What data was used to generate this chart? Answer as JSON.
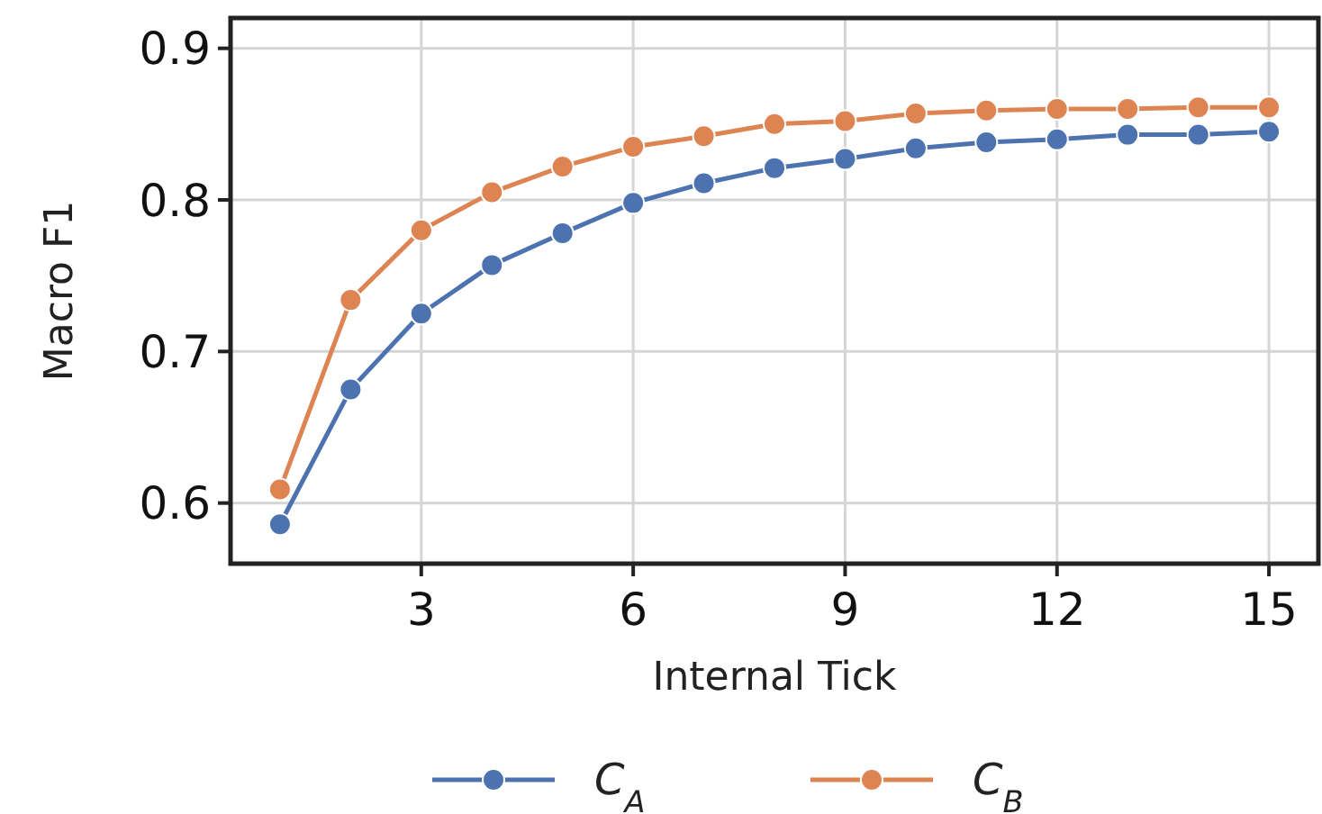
{
  "chart_data": {
    "type": "line",
    "xlabel": "Internal Tick",
    "ylabel": "Macro F1",
    "x": [
      1,
      2,
      3,
      4,
      5,
      6,
      7,
      8,
      9,
      10,
      11,
      12,
      13,
      14,
      15
    ],
    "xlim": [
      0.3,
      15.7
    ],
    "xticks": [
      3,
      6,
      9,
      12,
      15
    ],
    "ylim": [
      0.56,
      0.92
    ],
    "yticks": [
      0.6,
      0.7,
      0.8,
      0.9
    ],
    "grid": true,
    "legend": "bottom",
    "marker": "circle",
    "line_style": "solid",
    "series": [
      {
        "name": "C$_{A}$",
        "color": "#4c72b0",
        "values": [
          0.586,
          0.675,
          0.725,
          0.757,
          0.778,
          0.798,
          0.811,
          0.821,
          0.827,
          0.834,
          0.838,
          0.84,
          0.843,
          0.843,
          0.845
        ]
      },
      {
        "name": "C$_{B}$",
        "color": "#dd8452",
        "values": [
          0.609,
          0.734,
          0.78,
          0.805,
          0.822,
          0.835,
          0.842,
          0.85,
          0.852,
          0.857,
          0.859,
          0.86,
          0.86,
          0.861,
          0.861
        ]
      }
    ]
  }
}
